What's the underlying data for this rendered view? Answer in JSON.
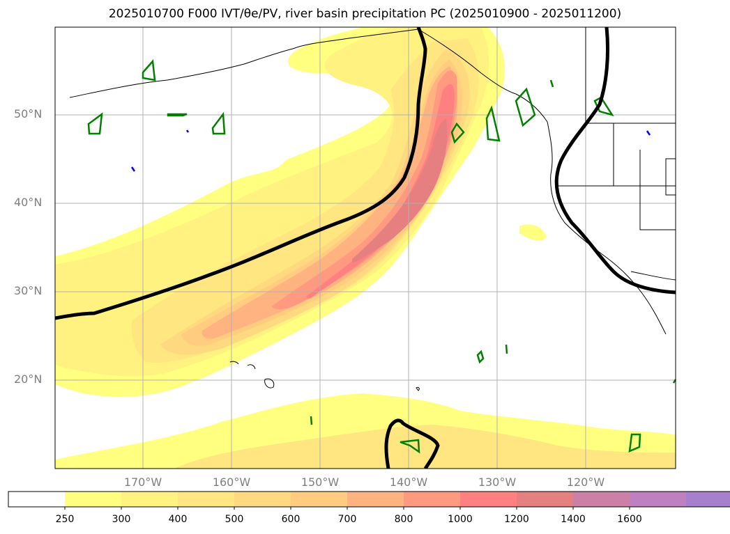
{
  "title": "2025010700 F000 IVT/θe/PV, river basin precipitation PC (2025010900 - 2025011200)",
  "lat_labels": [
    "50°N",
    "40°N",
    "30°N",
    "20°N"
  ],
  "lon_labels": [
    "170°W",
    "160°W",
    "150°W",
    "140°W",
    "130°W",
    "120°W"
  ],
  "colorbar": {
    "levels": [
      "250",
      "300",
      "400",
      "500",
      "600",
      "700",
      "800",
      "1000",
      "1200",
      "1400",
      "1600"
    ],
    "colors": [
      "#ffff80",
      "#fff280",
      "#ffe680",
      "#ffd980",
      "#ffcc80",
      "#ffb380",
      "#ff9980",
      "#ff8080",
      "#e68080",
      "#cc80a6",
      "#bf80bf",
      "#a680cc"
    ],
    "extend": "max"
  },
  "colors": {
    "ivt_contour": "#000000",
    "pv_contour": "#008000",
    "negative_contour": "#0000ff",
    "grid": "#b0b0b0"
  }
}
